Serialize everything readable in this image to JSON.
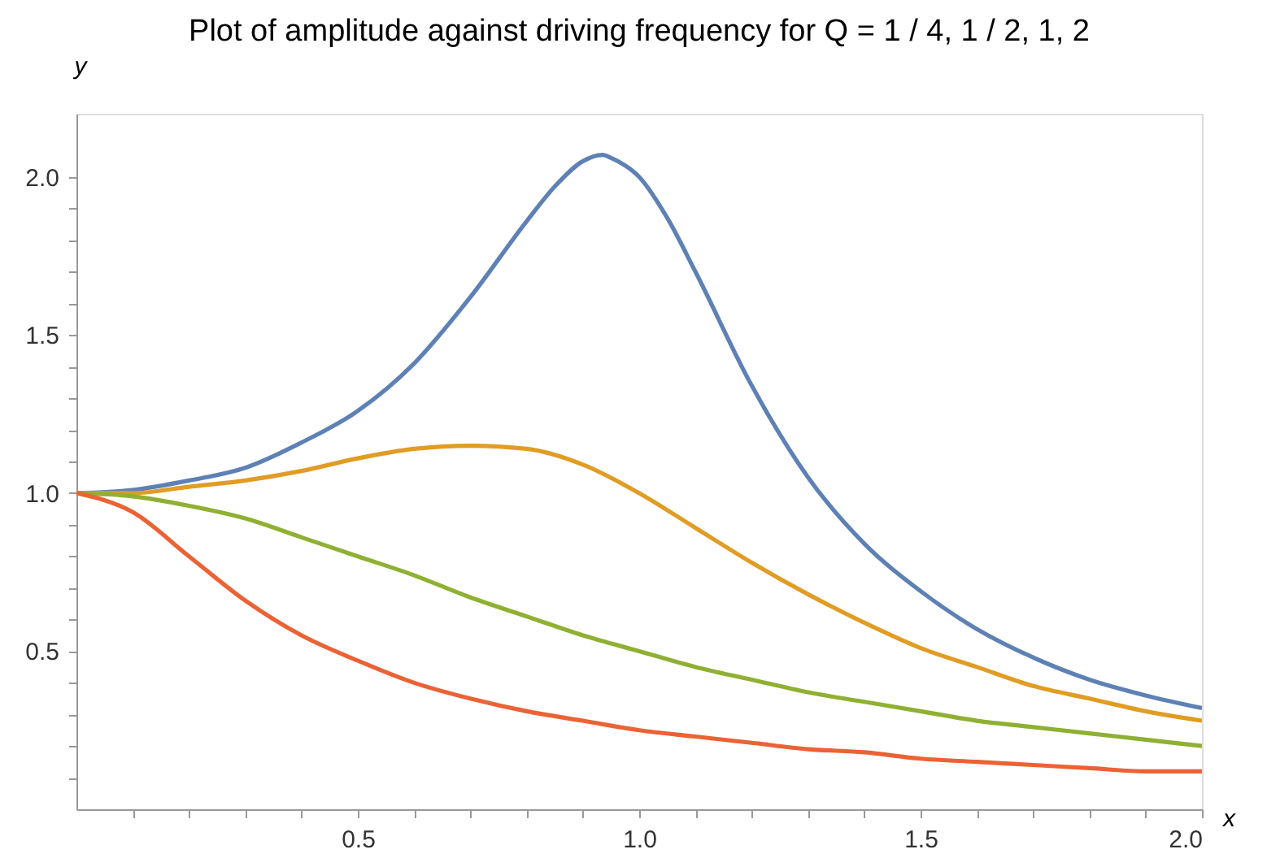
{
  "chart_data": {
    "type": "line",
    "title": "Plot of amplitude against driving frequency for Q = 1 / 4, 1 / 2, 1, 2",
    "xlabel": "x",
    "ylabel": "y",
    "xlim": [
      0,
      2
    ],
    "ylim": [
      0,
      2.2
    ],
    "xticks": [
      {
        "value": 0.1,
        "label": null
      },
      {
        "value": 0.2,
        "label": null
      },
      {
        "value": 0.3,
        "label": null
      },
      {
        "value": 0.4,
        "label": null
      },
      {
        "value": 0.5,
        "label": "0.5"
      },
      {
        "value": 0.6,
        "label": null
      },
      {
        "value": 0.7,
        "label": null
      },
      {
        "value": 0.8,
        "label": null
      },
      {
        "value": 0.9,
        "label": null
      },
      {
        "value": 1,
        "label": "1.0"
      },
      {
        "value": 1.1,
        "label": null
      },
      {
        "value": 1.2,
        "label": null
      },
      {
        "value": 1.3,
        "label": null
      },
      {
        "value": 1.4,
        "label": null
      },
      {
        "value": 1.5,
        "label": "1.5"
      },
      {
        "value": 1.6,
        "label": null
      },
      {
        "value": 1.7,
        "label": null
      },
      {
        "value": 1.8,
        "label": null
      },
      {
        "value": 1.9,
        "label": null
      },
      {
        "value": 2,
        "label": "2.0"
      }
    ],
    "yticks": [
      {
        "value": 0.1,
        "label": null
      },
      {
        "value": 0.2,
        "label": null
      },
      {
        "value": 0.3,
        "label": null
      },
      {
        "value": 0.4,
        "label": null
      },
      {
        "value": 0.5,
        "label": "0.5"
      },
      {
        "value": 0.6,
        "label": null
      },
      {
        "value": 0.7,
        "label": null
      },
      {
        "value": 0.8,
        "label": null
      },
      {
        "value": 0.9,
        "label": null
      },
      {
        "value": 1,
        "label": "1.0"
      },
      {
        "value": 1.1,
        "label": null
      },
      {
        "value": 1.2,
        "label": null
      },
      {
        "value": 1.3,
        "label": null
      },
      {
        "value": 1.4,
        "label": null
      },
      {
        "value": 1.5,
        "label": "1.5"
      },
      {
        "value": 1.6,
        "label": null
      },
      {
        "value": 1.7,
        "label": null
      },
      {
        "value": 1.8,
        "label": null
      },
      {
        "value": 1.9,
        "label": null
      },
      {
        "value": 2,
        "label": "2.0"
      }
    ],
    "grid": false,
    "legend": false,
    "marker": "none",
    "line_style": "solid",
    "series": [
      {
        "color": "#5e81b5",
        "x": [
          0,
          0.1,
          0.2,
          0.3,
          0.4,
          0.5,
          0.6,
          0.7,
          0.8,
          0.85,
          0.9,
          0.935,
          0.95,
          1.0,
          1.05,
          1.1,
          1.2,
          1.3,
          1.4,
          1.5,
          1.6,
          1.7,
          1.8,
          1.9,
          2.0
        ],
        "values": [
          1,
          1.01,
          1.04,
          1.08,
          1.16,
          1.26,
          1.41,
          1.62,
          1.86,
          1.97,
          2.05,
          2.07,
          2.06,
          2.0,
          1.87,
          1.7,
          1.34,
          1.05,
          0.84,
          0.69,
          0.57,
          0.48,
          0.41,
          0.36,
          0.32
        ]
      },
      {
        "color": "#e19c24",
        "x": [
          0,
          0.1,
          0.2,
          0.3,
          0.4,
          0.5,
          0.6,
          0.7,
          0.8,
          0.9,
          1.0,
          1.1,
          1.2,
          1.3,
          1.4,
          1.5,
          1.6,
          1.7,
          1.8,
          1.9,
          2.0
        ],
        "values": [
          1,
          1.0,
          1.02,
          1.04,
          1.07,
          1.11,
          1.14,
          1.15,
          1.14,
          1.09,
          1.0,
          0.89,
          0.78,
          0.68,
          0.59,
          0.51,
          0.45,
          0.39,
          0.35,
          0.31,
          0.28
        ]
      },
      {
        "color": "#8fb032",
        "x": [
          0,
          0.1,
          0.2,
          0.3,
          0.4,
          0.5,
          0.6,
          0.7,
          0.8,
          0.9,
          1.0,
          1.1,
          1.2,
          1.3,
          1.4,
          1.5,
          1.6,
          1.7,
          1.8,
          1.9,
          2.0
        ],
        "values": [
          1,
          0.99,
          0.96,
          0.92,
          0.86,
          0.8,
          0.74,
          0.67,
          0.61,
          0.55,
          0.5,
          0.45,
          0.41,
          0.37,
          0.34,
          0.31,
          0.28,
          0.26,
          0.24,
          0.22,
          0.2
        ]
      },
      {
        "color": "#eb6235",
        "x": [
          0,
          0.1,
          0.2,
          0.3,
          0.4,
          0.5,
          0.6,
          0.7,
          0.8,
          0.9,
          1.0,
          1.1,
          1.2,
          1.3,
          1.4,
          1.5,
          1.6,
          1.7,
          1.8,
          1.9,
          2.0
        ],
        "values": [
          1,
          0.94,
          0.8,
          0.66,
          0.55,
          0.47,
          0.4,
          0.35,
          0.31,
          0.28,
          0.25,
          0.23,
          0.21,
          0.19,
          0.18,
          0.16,
          0.15,
          0.14,
          0.13,
          0.12,
          0.12
        ]
      }
    ]
  }
}
